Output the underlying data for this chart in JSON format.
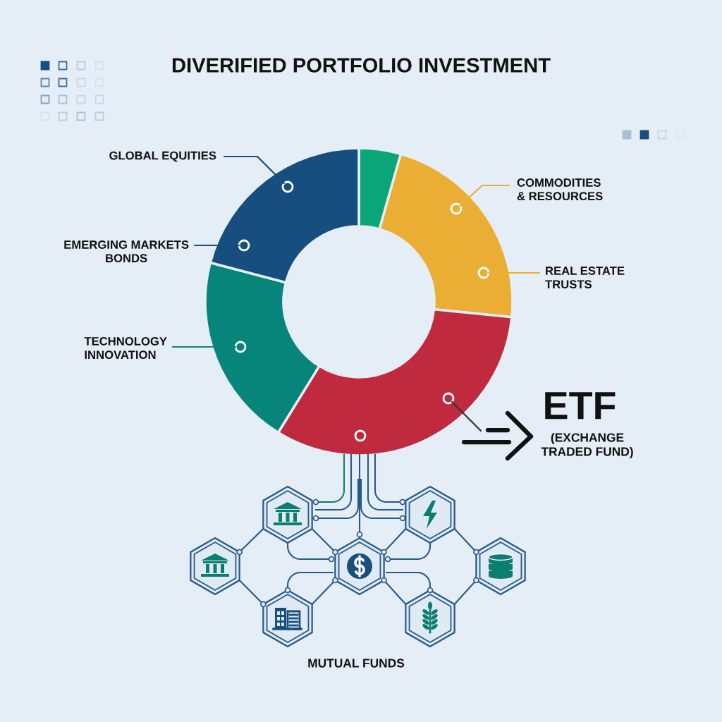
{
  "chart_data": {
    "type": "donut",
    "title": "DIVERIFIED PORTFOLIO INVESTMENT",
    "categories": [
      null,
      "COMMODITIES\n& RESOURCES",
      "ETF",
      "TECHNOLOGY\nINNOVATION",
      "GLOBAL EQUITIES"
    ],
    "values": [
      4.4,
      22.2,
      32.2,
      20.3,
      20.9
    ],
    "colors": [
      "#0ba677",
      "#ebae35",
      "#bf2a3f",
      "#07857a",
      "#164e80"
    ],
    "annotations": [
      "EMERGING MARKETS\nBONDS",
      "REAL ESTATE\nTRUSTS",
      "(EXCHANGE\nTRADED FUND)",
      "MUTUAL FUNDS"
    ]
  }
}
